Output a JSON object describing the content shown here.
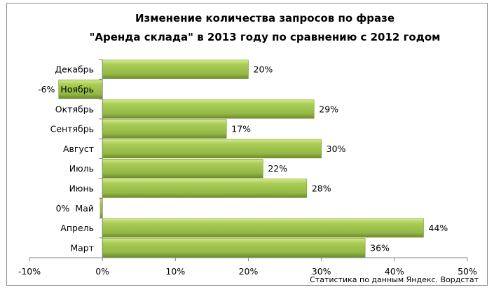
{
  "chart_data": {
    "type": "bar",
    "orientation": "horizontal",
    "title_lines": [
      "Изменение количества запросов по фразе",
      "\"Аренда склада\"  в 2013 году по сравнению  с 2012 годом"
    ],
    "categories": [
      "Декабрь",
      "Ноябрь",
      "Октябрь",
      "Сентябрь",
      "Август",
      "Июль",
      "Июнь",
      "Май",
      "Апрель",
      "Март"
    ],
    "values": [
      20,
      -6,
      29,
      17,
      30,
      22,
      28,
      -0.3,
      44,
      36
    ],
    "data_labels": [
      "20%",
      "-6%",
      "29%",
      "17%",
      "30%",
      "22%",
      "28%",
      "0%",
      "44%",
      "36%"
    ],
    "xlim": [
      -10,
      50
    ],
    "x_ticks": [
      -10,
      0,
      10,
      20,
      30,
      40,
      50
    ],
    "x_tick_labels": [
      "-10%",
      "0%",
      "10%",
      "20%",
      "30%",
      "40%",
      "50%"
    ],
    "grid": false,
    "legend": "none",
    "bar_color": "#9bbb59",
    "source_note": "Статистика по данным Яндекс. Вордстат"
  }
}
